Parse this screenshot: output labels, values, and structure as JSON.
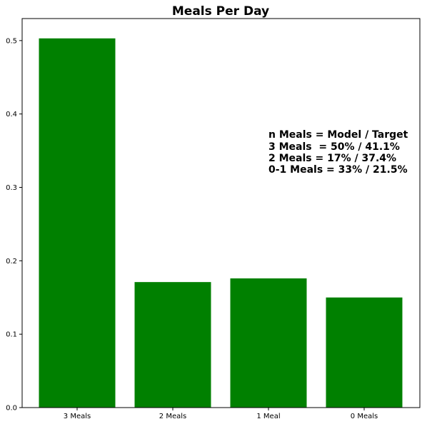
{
  "chart_data": {
    "type": "bar",
    "title": "Meals Per Day",
    "xlabel": "",
    "ylabel": "",
    "categories": [
      "3 Meals",
      "2 Meals",
      "1 Meal",
      "0 Meals"
    ],
    "values": [
      0.503,
      0.171,
      0.176,
      0.15
    ],
    "ylim": [
      0,
      0.53
    ],
    "yticks": [
      0.0,
      0.1,
      0.2,
      0.3,
      0.4,
      0.5
    ],
    "ytick_labels": [
      "0.0",
      "0.1",
      "0.2",
      "0.3",
      "0.4",
      "0.5"
    ],
    "bar_color": "#008000",
    "grid": false,
    "annotation_lines": [
      "n Meals = Model / Target",
      "3 Meals  = 50% / 41.1%",
      "2 Meals = 17% / 37.4%",
      "0-1 Meals = 33% / 21.5%"
    ]
  }
}
